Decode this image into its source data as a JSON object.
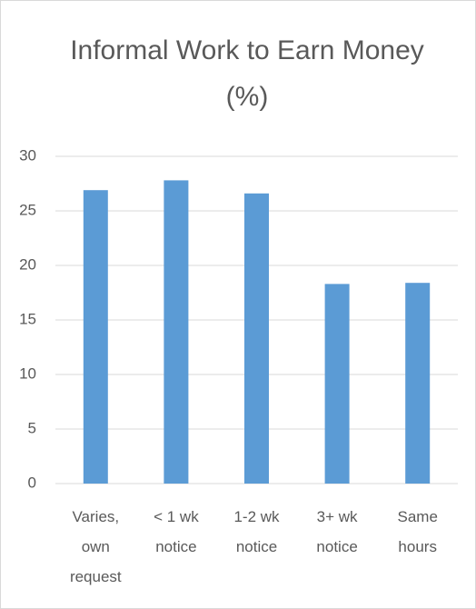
{
  "chart_data": {
    "type": "bar",
    "title": "Informal Work to Earn Money (%)",
    "categories": [
      "Varies, own request",
      "< 1 wk notice",
      "1-2 wk notice",
      "3+ wk notice",
      "Same hours"
    ],
    "values": [
      26.9,
      27.8,
      26.6,
      18.3,
      18.4
    ],
    "color": "#5b9bd5",
    "ylim": [
      0,
      30
    ],
    "yticks": [
      0,
      5,
      10,
      15,
      20,
      25,
      30
    ],
    "grid": true
  }
}
